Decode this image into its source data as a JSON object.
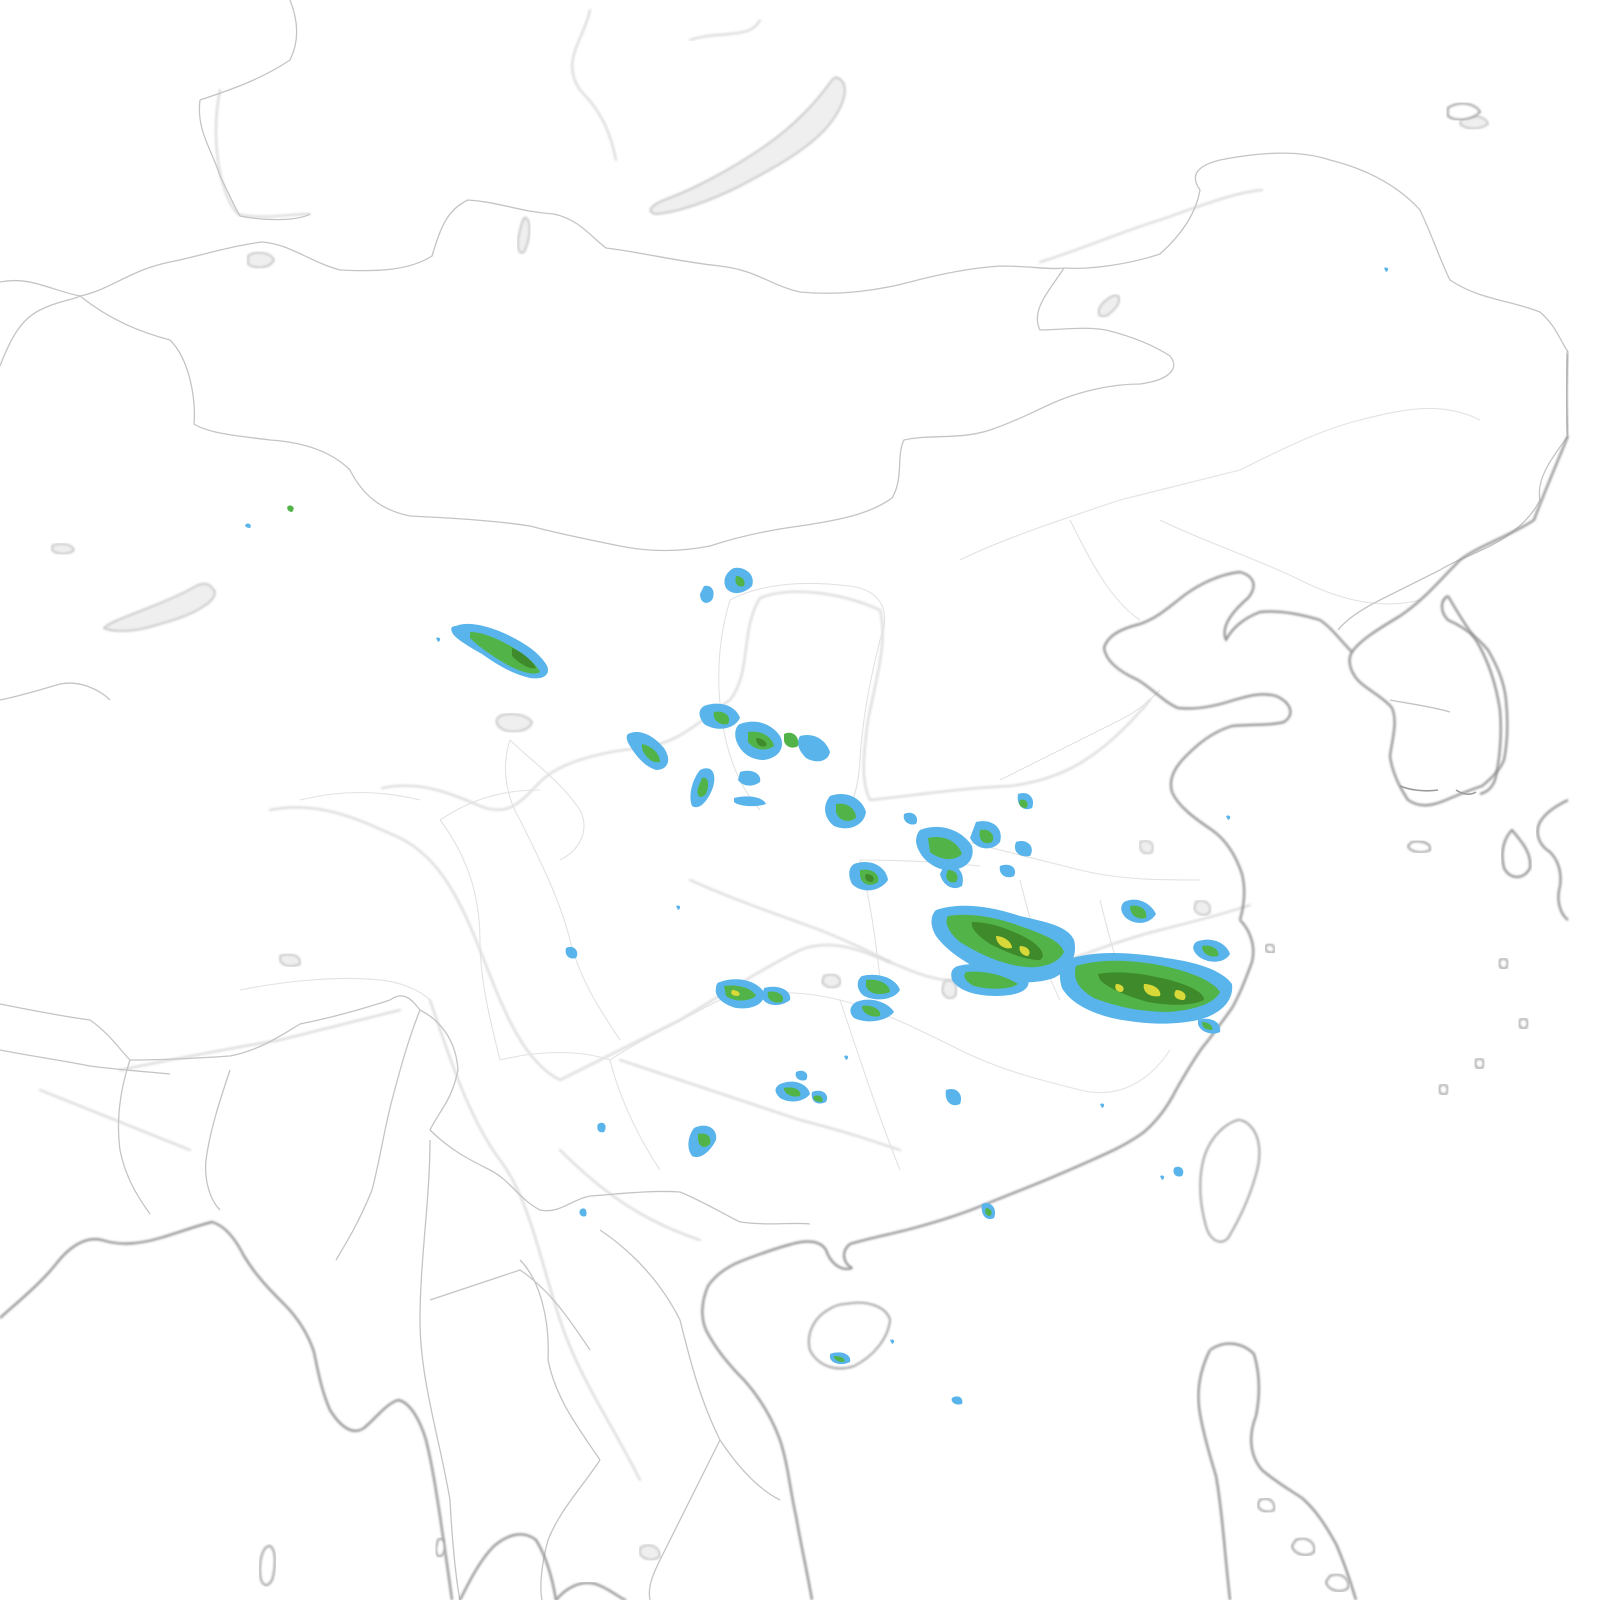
{
  "map": {
    "basemap_style": "grayscale outline",
    "colors": {
      "background": "#ffffff",
      "coastline": "#8f8f8f",
      "border": "#c4c4c4",
      "river": "#dadada",
      "lake": "#efefef"
    },
    "precip_legend_colors": {
      "light": "#58b4ea",
      "moderate": "#52b448",
      "heavy": "#3f8a2a",
      "very_heavy": "#d8d838"
    },
    "precip_cells": [
      {
        "name": "gansu-west-cell",
        "level": "moderate"
      },
      {
        "name": "inner-mongolia-cell",
        "level": "light"
      },
      {
        "name": "ningxia-cell",
        "level": "moderate"
      },
      {
        "name": "shaanxi-north-cell",
        "level": "moderate"
      },
      {
        "name": "shanxi-cell",
        "level": "light"
      },
      {
        "name": "henan-cell",
        "level": "moderate"
      },
      {
        "name": "anhui-jiangsu-cell",
        "level": "heavy"
      },
      {
        "name": "zhejiang-cell",
        "level": "heavy"
      },
      {
        "name": "hubei-cell",
        "level": "moderate"
      },
      {
        "name": "hunan-cell",
        "level": "moderate"
      },
      {
        "name": "guangxi-cell",
        "level": "light"
      },
      {
        "name": "hainan-cell",
        "level": "light"
      }
    ]
  }
}
